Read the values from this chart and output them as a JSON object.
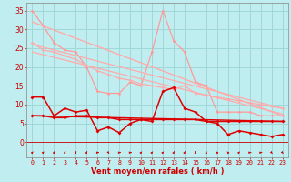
{
  "background_color": "#c0eef0",
  "grid_color": "#a0d8d8",
  "xlabel": "Vent moyen/en rafales ( km/h )",
  "ylim": [
    -4,
    37
  ],
  "xlim": [
    -0.5,
    23.5
  ],
  "yticks": [
    0,
    5,
    10,
    15,
    20,
    25,
    30,
    35
  ],
  "x_labels": [
    "0",
    "1",
    "2",
    "3",
    "4",
    "5",
    "6",
    "7",
    "8",
    "9",
    "10",
    "11",
    "12",
    "13",
    "14",
    "15",
    "16",
    "17",
    "18",
    "19",
    "20",
    "21",
    "22",
    "23"
  ],
  "lines": [
    {
      "color": "#ff9999",
      "lw": 0.9,
      "marker": "D",
      "ms": 1.8,
      "x": [
        0,
        1,
        2,
        3,
        4,
        5,
        6,
        7,
        8,
        9,
        10,
        11,
        12,
        13,
        14,
        15,
        16,
        17,
        18,
        19,
        20,
        21,
        22,
        23
      ],
      "y": [
        35,
        31,
        26.5,
        24.5,
        24,
        20,
        13.5,
        13,
        13,
        16,
        15,
        24,
        35,
        27,
        24,
        16,
        15,
        8,
        8,
        8,
        8,
        7,
        7,
        7
      ]
    },
    {
      "color": "#ffaaaa",
      "lw": 1.0,
      "marker": null,
      "x": [
        0,
        23
      ],
      "y": [
        32,
        7
      ]
    },
    {
      "color": "#ffaaaa",
      "lw": 0.9,
      "marker": "D",
      "ms": 1.8,
      "x": [
        0,
        1,
        2,
        3,
        4,
        5,
        6,
        7,
        8,
        9,
        10,
        11,
        12,
        13,
        14,
        15,
        16,
        17,
        18,
        19,
        20,
        21,
        22,
        23
      ],
      "y": [
        26.5,
        24.5,
        24,
        23,
        22,
        20.5,
        19,
        18,
        17,
        16.5,
        15.5,
        15,
        14.5,
        14,
        15,
        13,
        12.5,
        12,
        11.5,
        11,
        10.5,
        10,
        9.5,
        9
      ]
    },
    {
      "color": "#ffaaaa",
      "lw": 0.9,
      "marker": null,
      "x": [
        0,
        23
      ],
      "y": [
        26,
        9
      ]
    },
    {
      "color": "#ffaaaa",
      "lw": 0.9,
      "marker": null,
      "x": [
        0,
        23
      ],
      "y": [
        24,
        7.5
      ]
    },
    {
      "color": "#dd0000",
      "lw": 1.1,
      "marker": "D",
      "ms": 2.0,
      "x": [
        0,
        1,
        2,
        3,
        4,
        5,
        6,
        7,
        8,
        9,
        10,
        11,
        12,
        13,
        14,
        15,
        16,
        17,
        18,
        19,
        20,
        21,
        22,
        23
      ],
      "y": [
        12,
        12,
        7,
        9,
        8,
        8.5,
        3,
        4,
        2.5,
        5,
        6,
        5.5,
        13.5,
        14.5,
        9,
        8,
        5.5,
        5,
        2,
        3,
        2.5,
        2,
        1.5,
        2
      ]
    },
    {
      "color": "#dd0000",
      "lw": 1.1,
      "marker": "D",
      "ms": 2.0,
      "x": [
        0,
        1,
        2,
        3,
        4,
        5,
        6,
        7,
        8,
        9,
        10,
        11,
        12,
        13,
        14,
        15,
        16,
        17,
        18,
        19,
        20,
        21,
        22,
        23
      ],
      "y": [
        7,
        7,
        6.5,
        6.5,
        7,
        7,
        6.5,
        6.5,
        6,
        6,
        6,
        6,
        6,
        6,
        6,
        6,
        5.5,
        5.5,
        5.5,
        5.5,
        5.5,
        5.5,
        5.5,
        5.5
      ]
    },
    {
      "color": "#dd0000",
      "lw": 1.0,
      "marker": null,
      "x": [
        0,
        23
      ],
      "y": [
        7,
        5.5
      ]
    }
  ],
  "wind_symbols_y": -2.8,
  "wind_color": "#cc0000",
  "tick_color": "#cc0000",
  "label_color": "#cc0000"
}
